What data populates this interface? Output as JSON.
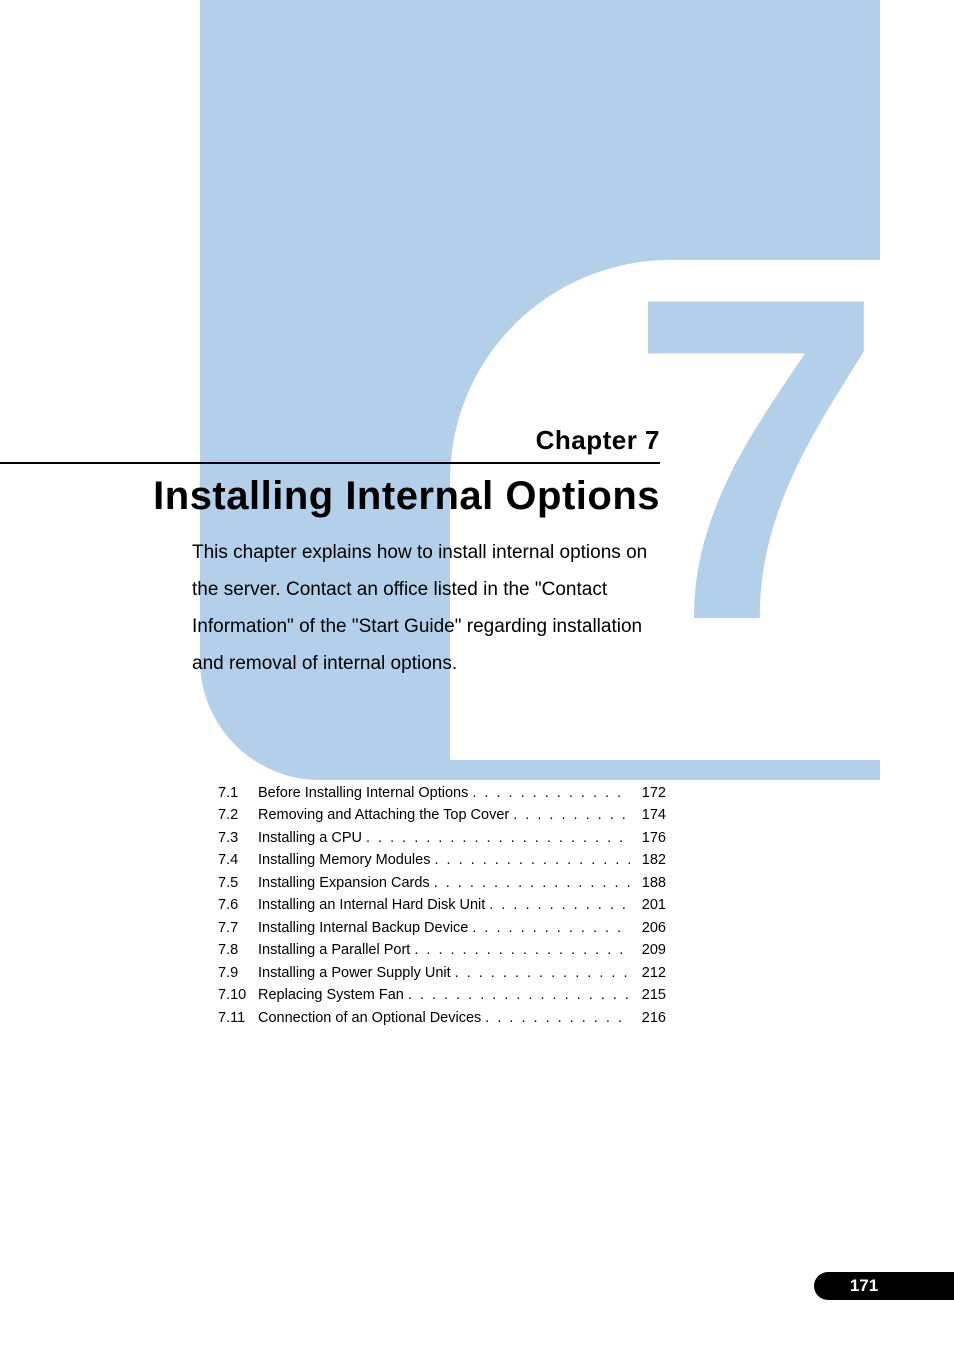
{
  "colors": {
    "panel_bg": "#b3cfe9",
    "page_bg": "#ffffff",
    "text": "#000000",
    "badge_bg": "#000000",
    "badge_text": "#ffffff"
  },
  "typography": {
    "big_number_fontsize": 460,
    "chapter_label_fontsize": 26,
    "chapter_title_fontsize": 40,
    "intro_fontsize": 19,
    "toc_fontsize": 14.5,
    "badge_fontsize": 17
  },
  "chapter": {
    "big_number": "7",
    "label": "Chapter 7",
    "title": "Installing Internal Options",
    "intro": "This chapter explains how to install internal options on the server. Contact an office listed in the \"Contact Information\" of the \"Start Guide\" regarding installation and removal of internal options."
  },
  "toc": [
    {
      "num": "7.1",
      "title": "Before Installing Internal Options",
      "page": "172"
    },
    {
      "num": "7.2",
      "title": "Removing and Attaching the Top Cover",
      "page": "174"
    },
    {
      "num": "7.3",
      "title": "Installing a CPU",
      "page": "176"
    },
    {
      "num": "7.4",
      "title": "Installing Memory Modules",
      "page": "182"
    },
    {
      "num": "7.5",
      "title": "Installing Expansion Cards",
      "page": "188"
    },
    {
      "num": "7.6",
      "title": "Installing an Internal Hard Disk Unit",
      "page": "201"
    },
    {
      "num": "7.7",
      "title": "Installing Internal Backup Device",
      "page": "206"
    },
    {
      "num": "7.8",
      "title": "Installing a Parallel Port",
      "page": "209"
    },
    {
      "num": "7.9",
      "title": "Installing a Power Supply Unit",
      "page": "212"
    },
    {
      "num": "7.10",
      "title": "Replacing System Fan",
      "page": "215"
    },
    {
      "num": "7.11",
      "title": "Connection of an Optional Devices",
      "page": "216"
    }
  ],
  "page_number": "171"
}
